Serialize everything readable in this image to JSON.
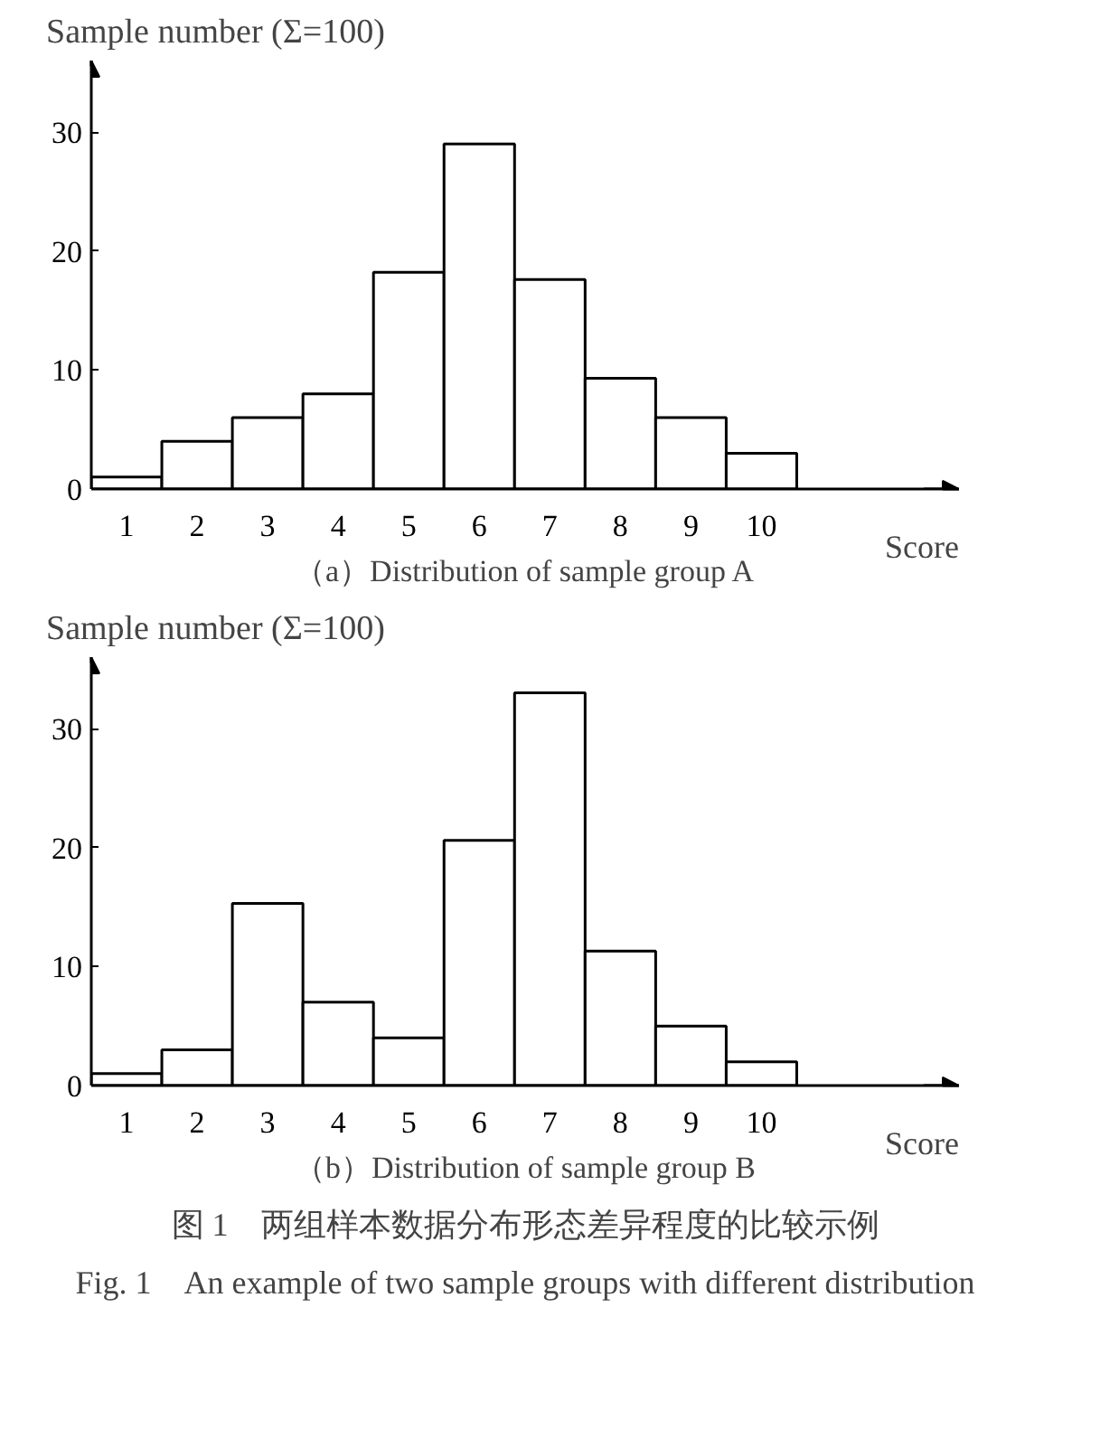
{
  "chart_data": [
    {
      "type": "bar",
      "title": "（a）Distribution of sample group A",
      "xlabel": "Score",
      "ylabel": "Sample number (Σ=100)",
      "categories": [
        "1",
        "2",
        "3",
        "4",
        "5",
        "6",
        "7",
        "8",
        "9",
        "10"
      ],
      "values": [
        1,
        4,
        6,
        8,
        18.2,
        29,
        17.6,
        9.3,
        6,
        3
      ],
      "color": "#ffffff",
      "ylim": [
        0,
        36
      ],
      "yticks": [
        0,
        10,
        20,
        30
      ],
      "grid": false
    },
    {
      "type": "bar",
      "title": "（b）Distribution of sample group B",
      "xlabel": "Score",
      "ylabel": "Sample number (Σ=100)",
      "categories": [
        "1",
        "2",
        "3",
        "4",
        "5",
        "6",
        "7",
        "8",
        "9",
        "10"
      ],
      "values": [
        1,
        3,
        15.3,
        7,
        4,
        20.6,
        33,
        11.3,
        5,
        2
      ],
      "color": "#ffffff",
      "ylim": [
        0,
        36
      ],
      "yticks": [
        0,
        10,
        20,
        30
      ],
      "grid": false,
      "annotations": [
        "图 1　两组样本数据分布形态差异程度的比较示例",
        "Fig. 1　An example of two sample groups with different distribution"
      ]
    }
  ]
}
